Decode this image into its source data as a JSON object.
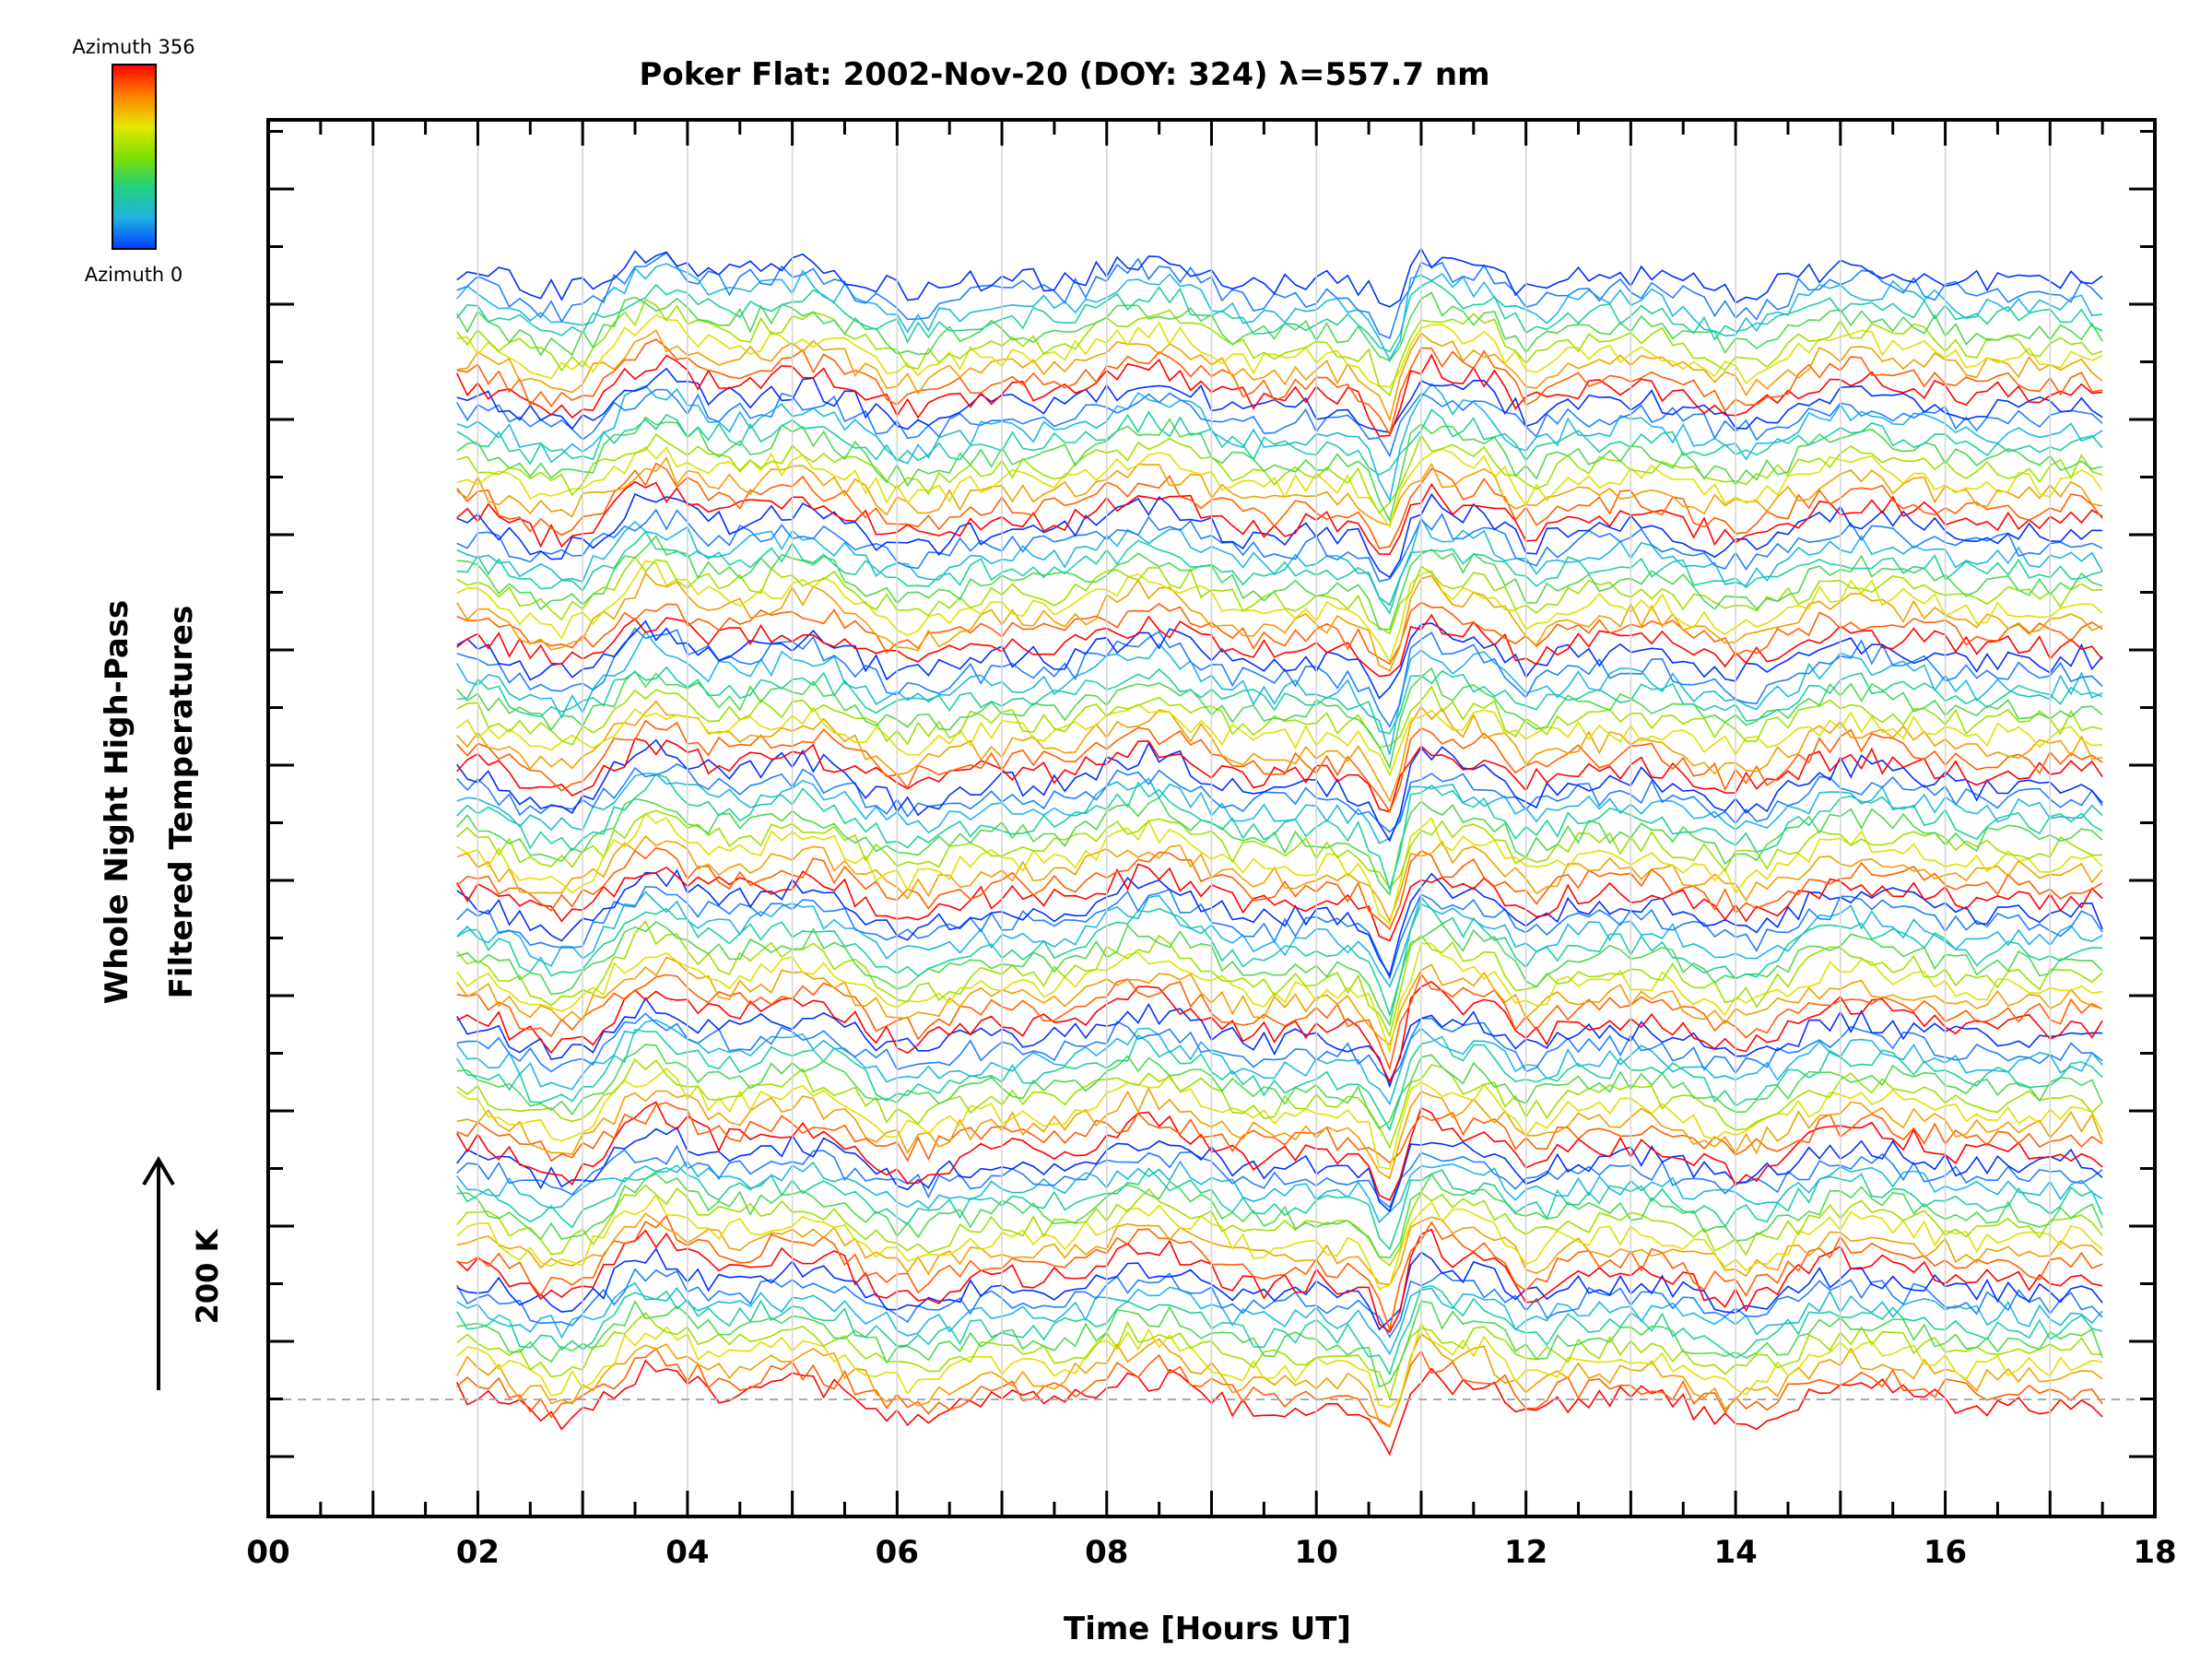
{
  "chart_data": {
    "type": "line",
    "title": "Poker Flat: 2002-Nov-20 (DOY: 324) λ=557.7 nm",
    "xlabel": "Time [Hours UT]",
    "ylabel_line1": "Whole Night High-Pass",
    "ylabel_line2": "Filtered Temperatures",
    "x_ticks": [
      "00",
      "02",
      "04",
      "06",
      "08",
      "10",
      "12",
      "14",
      "16",
      "18"
    ],
    "xlim": [
      0,
      18
    ],
    "x_range_data": [
      1.8,
      17.5
    ],
    "scale_bar_label": "200 K",
    "colorbar": {
      "top_label": "Azimuth 356",
      "bottom_label": "Azimuth 0",
      "colors": [
        "#ff0000",
        "#ff8000",
        "#e6e600",
        "#80e000",
        "#20d080",
        "#20b0e0",
        "#0040ff"
      ]
    },
    "series_description": "Approximately 90 high-pass filtered temperature traces, each offset vertically, colored by azimuth",
    "grid": true
  }
}
